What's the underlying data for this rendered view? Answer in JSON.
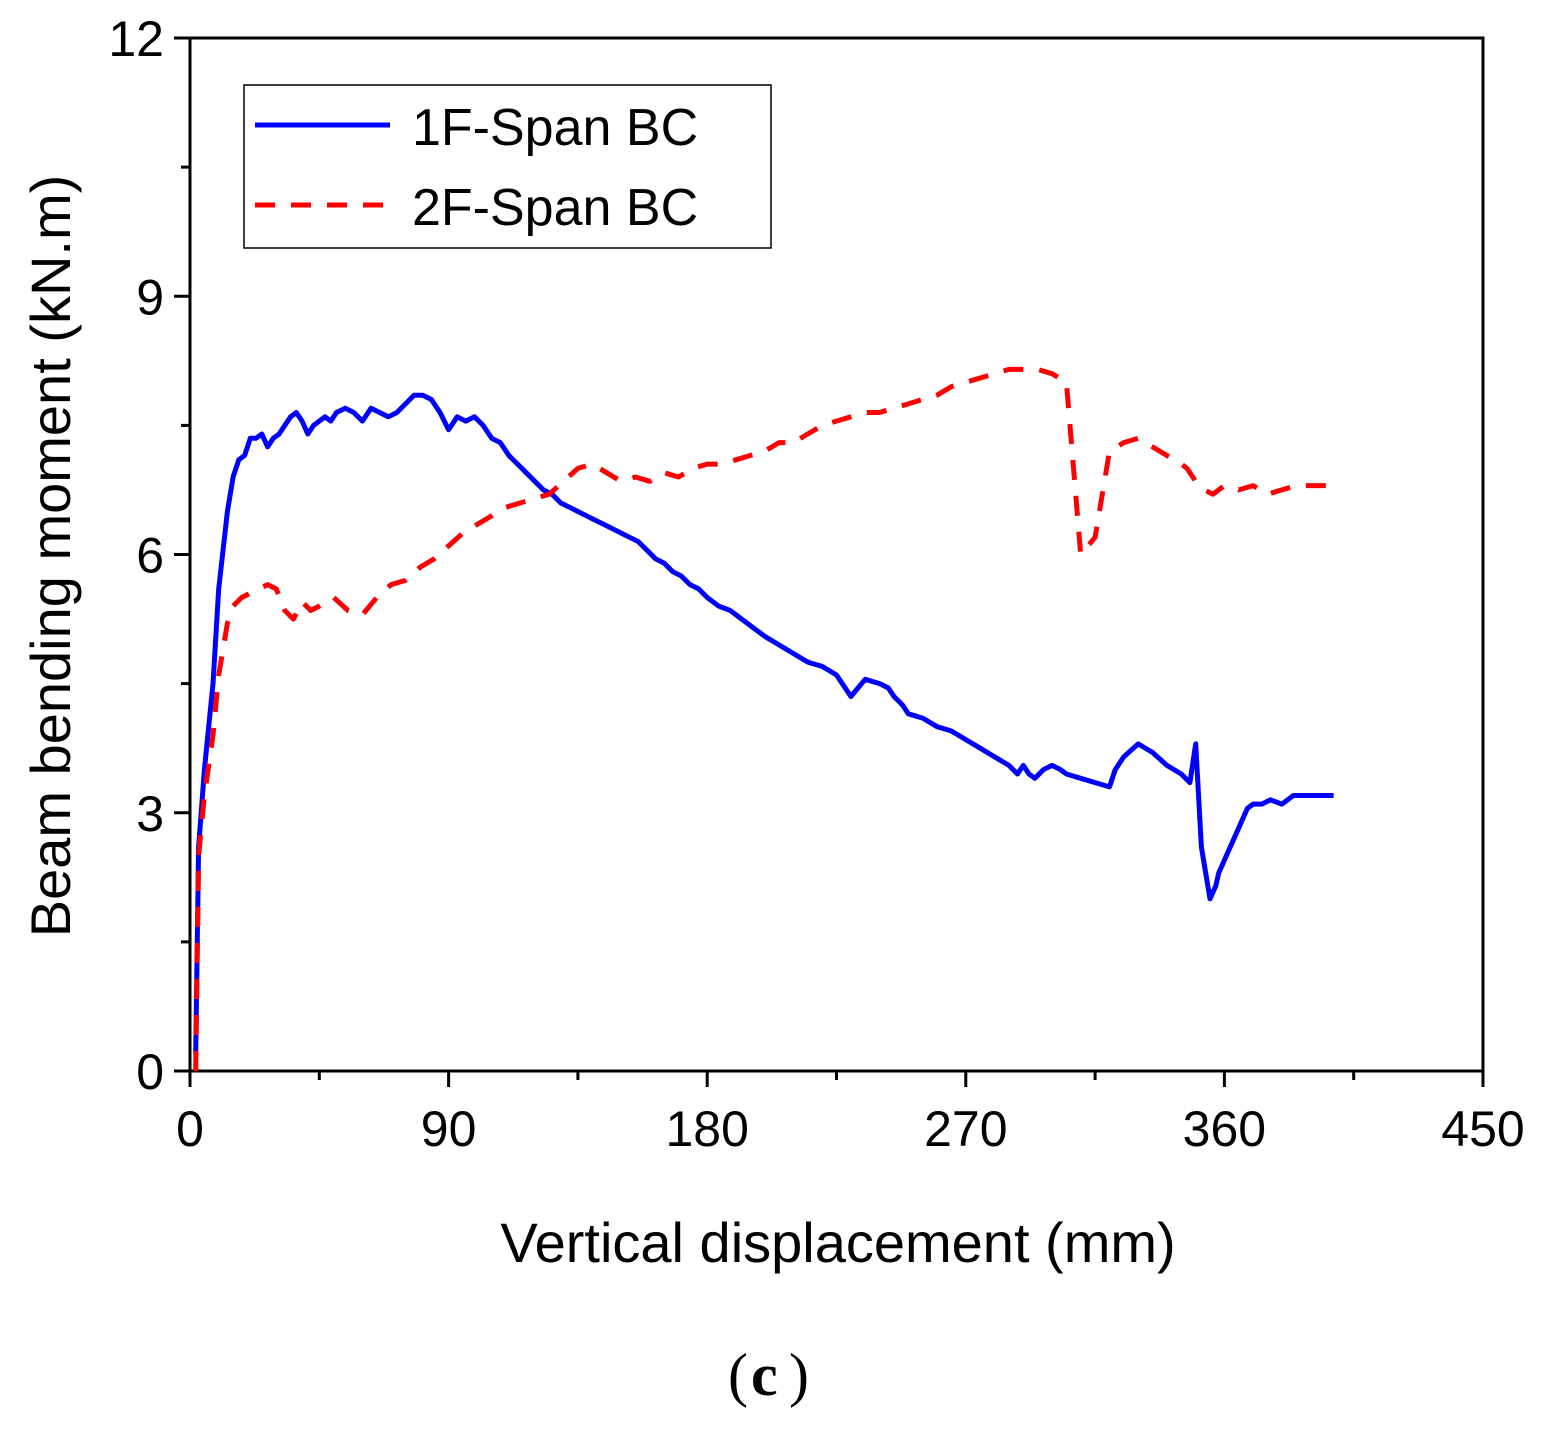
{
  "chart_data": {
    "type": "line",
    "title": "",
    "xlabel": "Vertical displacement (mm)",
    "ylabel": "Beam bending moment (kN.m)",
    "xlim": [
      0,
      450
    ],
    "ylim": [
      0,
      12
    ],
    "xticks": [
      "0",
      "90",
      "180",
      "270",
      "360",
      "450"
    ],
    "yticks": [
      "0",
      "3",
      "6",
      "9",
      "12"
    ],
    "xtick_values": [
      0,
      90,
      180,
      270,
      360,
      450
    ],
    "ytick_values": [
      0,
      3,
      6,
      9,
      12
    ],
    "legend_position": "top-left",
    "panel_label": "c",
    "series": [
      {
        "name": "1F-Span BC",
        "color": "#0000ff",
        "style": "solid",
        "x": [
          2,
          3,
          5,
          8,
          10,
          13,
          15,
          17,
          19,
          21,
          23,
          25,
          27,
          29,
          31,
          33,
          35,
          37,
          39,
          41,
          43,
          45,
          47,
          49,
          51,
          54,
          57,
          60,
          63,
          66,
          69,
          72,
          75,
          78,
          81,
          84,
          87,
          90,
          93,
          96,
          99,
          102,
          105,
          108,
          111,
          114,
          117,
          120,
          123,
          126,
          129,
          132,
          135,
          138,
          141,
          144,
          147,
          150,
          153,
          156,
          159,
          162,
          165,
          168,
          171,
          174,
          177,
          180,
          184,
          188,
          192,
          196,
          200,
          205,
          210,
          215,
          220,
          225,
          230,
          235,
          240,
          243,
          245,
          248,
          250,
          255,
          260,
          265,
          270,
          275,
          280,
          285,
          288,
          290,
          292,
          294,
          297,
          300,
          303,
          305,
          310,
          315,
          320,
          322,
          325,
          330,
          335,
          340,
          345,
          348,
          350,
          352,
          355,
          357,
          358,
          360,
          362,
          364,
          366,
          368,
          370,
          373,
          376,
          380,
          384,
          388,
          392,
          396,
          398
        ],
        "y": [
          0.2,
          2.6,
          3.5,
          4.5,
          5.6,
          6.5,
          6.9,
          7.1,
          7.15,
          7.35,
          7.35,
          7.4,
          7.25,
          7.35,
          7.4,
          7.5,
          7.6,
          7.65,
          7.55,
          7.4,
          7.5,
          7.55,
          7.6,
          7.55,
          7.65,
          7.7,
          7.65,
          7.55,
          7.7,
          7.65,
          7.6,
          7.65,
          7.75,
          7.85,
          7.85,
          7.8,
          7.65,
          7.45,
          7.6,
          7.55,
          7.6,
          7.5,
          7.35,
          7.3,
          7.15,
          7.05,
          6.95,
          6.85,
          6.75,
          6.7,
          6.6,
          6.55,
          6.5,
          6.45,
          6.4,
          6.35,
          6.3,
          6.25,
          6.2,
          6.15,
          6.05,
          5.95,
          5.9,
          5.8,
          5.75,
          5.65,
          5.6,
          5.5,
          5.4,
          5.35,
          5.25,
          5.15,
          5.05,
          4.95,
          4.85,
          4.75,
          4.7,
          4.6,
          4.35,
          4.55,
          4.5,
          4.45,
          4.35,
          4.25,
          4.15,
          4.1,
          4.0,
          3.95,
          3.85,
          3.75,
          3.65,
          3.55,
          3.45,
          3.55,
          3.45,
          3.4,
          3.5,
          3.55,
          3.5,
          3.45,
          3.4,
          3.35,
          3.3,
          3.5,
          3.65,
          3.8,
          3.7,
          3.55,
          3.45,
          3.35,
          3.8,
          2.6,
          2.0,
          2.15,
          2.3,
          2.45,
          2.6,
          2.75,
          2.9,
          3.05,
          3.1,
          3.1,
          3.15,
          3.1,
          3.2,
          3.2,
          3.2,
          3.2,
          3.2
        ],
        "y_note": "estimated from gridlines"
      },
      {
        "name": "2F-Span BC",
        "color": "#ff0000",
        "style": "dashed",
        "x": [
          2,
          3,
          5,
          8,
          10,
          13,
          15,
          18,
          21,
          24,
          27,
          30,
          33,
          36,
          39,
          42,
          45,
          50,
          55,
          60,
          65,
          70,
          75,
          80,
          85,
          90,
          95,
          100,
          105,
          110,
          115,
          120,
          125,
          130,
          135,
          140,
          145,
          150,
          155,
          160,
          165,
          170,
          175,
          180,
          185,
          190,
          195,
          200,
          205,
          210,
          215,
          220,
          225,
          230,
          235,
          240,
          245,
          250,
          255,
          260,
          265,
          270,
          275,
          280,
          285,
          290,
          295,
          300,
          305,
          310,
          315,
          320,
          325,
          330,
          335,
          340,
          343,
          345,
          347,
          349,
          351,
          353,
          356,
          360,
          365,
          370,
          375,
          380,
          385,
          390,
          395,
          400
        ],
        "y": [
          0.0,
          2.5,
          3.2,
          3.9,
          4.6,
          5.2,
          5.4,
          5.5,
          5.55,
          5.6,
          5.65,
          5.6,
          5.35,
          5.25,
          5.45,
          5.35,
          5.4,
          5.5,
          5.35,
          5.3,
          5.5,
          5.65,
          5.7,
          5.85,
          5.95,
          6.1,
          6.25,
          6.35,
          6.45,
          6.55,
          6.6,
          6.65,
          6.7,
          6.85,
          7.0,
          7.05,
          6.95,
          6.85,
          6.9,
          6.85,
          6.95,
          6.9,
          7.0,
          7.05,
          7.05,
          7.1,
          7.15,
          7.2,
          7.3,
          7.3,
          7.4,
          7.5,
          7.55,
          7.6,
          7.65,
          7.65,
          7.7,
          7.75,
          7.8,
          7.85,
          7.95,
          8.0,
          8.05,
          8.1,
          8.15,
          8.15,
          8.15,
          8.1,
          8.0,
          6.0,
          6.2,
          7.2,
          7.3,
          7.35,
          7.25,
          7.15,
          7.1,
          7.05,
          7.0,
          6.9,
          6.8,
          6.75,
          6.7,
          6.8,
          6.75,
          6.8,
          6.7,
          6.75,
          6.8,
          6.8,
          6.8,
          6.8
        ],
        "y_note": "estimated from gridlines"
      }
    ]
  }
}
